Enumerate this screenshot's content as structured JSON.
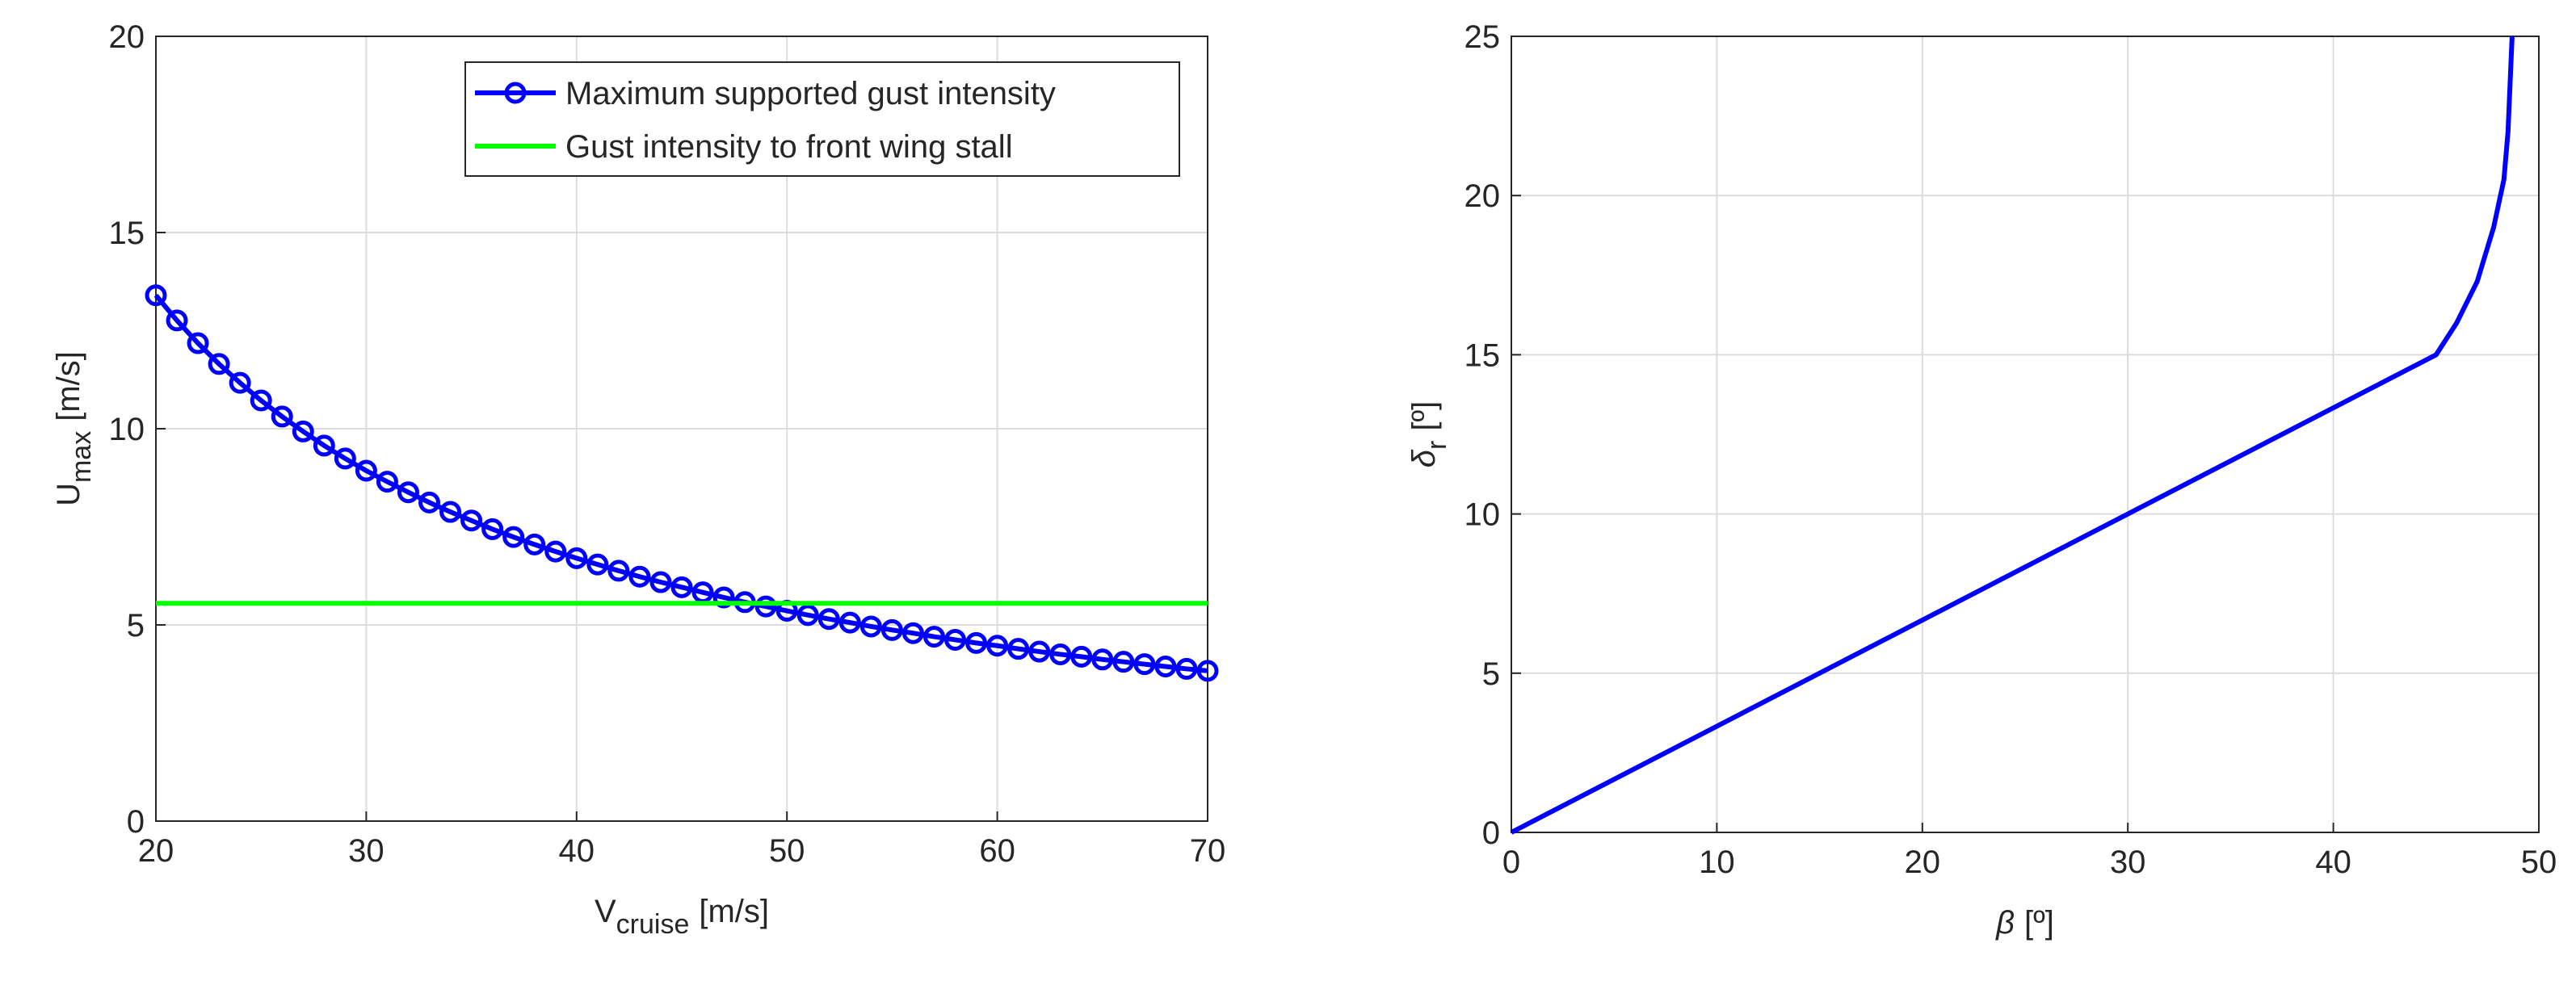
{
  "chart_data": [
    {
      "type": "line",
      "xlabel": {
        "main": "V",
        "sub": "cruise",
        "unit": "[m/s]"
      },
      "ylabel": {
        "main": "U",
        "sub": "max",
        "unit": "[m/s]"
      },
      "xlim": [
        20,
        70
      ],
      "xticks": [
        20,
        30,
        40,
        50,
        60,
        70
      ],
      "ylim": [
        0,
        20
      ],
      "yticks": [
        0,
        5,
        10,
        15,
        20
      ],
      "grid": true,
      "legend": "upper right",
      "series": [
        {
          "name": "Maximum supported gust intensity",
          "color": "#0000ff",
          "marker": "circle",
          "x": [
            20,
            21,
            22,
            23,
            24,
            25,
            26,
            27,
            28,
            29,
            30,
            31,
            32,
            33,
            34,
            35,
            36,
            37,
            38,
            39,
            40,
            41,
            42,
            43,
            44,
            45,
            46,
            47,
            48,
            49,
            50,
            51,
            52,
            53,
            54,
            55,
            56,
            57,
            58,
            59,
            60,
            61,
            62,
            63,
            64,
            65,
            66,
            67,
            68,
            69,
            70
          ],
          "values": [
            13.4,
            12.76,
            12.18,
            11.65,
            11.17,
            10.72,
            10.31,
            9.93,
            9.57,
            9.24,
            8.93,
            8.65,
            8.38,
            8.12,
            7.88,
            7.66,
            7.44,
            7.24,
            7.05,
            6.87,
            6.7,
            6.54,
            6.38,
            6.23,
            6.09,
            5.96,
            5.83,
            5.7,
            5.58,
            5.47,
            5.36,
            5.25,
            5.15,
            5.06,
            4.96,
            4.87,
            4.79,
            4.7,
            4.62,
            4.54,
            4.47,
            4.39,
            4.32,
            4.25,
            4.19,
            4.12,
            4.06,
            4,
            3.94,
            3.88,
            3.83
          ]
        },
        {
          "name": "Gust intensity to front wing stall",
          "color": "#00ff00",
          "x": [
            20,
            70
          ],
          "values": [
            5.55,
            5.55
          ]
        }
      ]
    },
    {
      "type": "line",
      "xlabel": {
        "main": "β",
        "unit": "[º]"
      },
      "ylabel": {
        "main": "δ",
        "sub": "r",
        "unit": "[º]"
      },
      "xlim": [
        0,
        50
      ],
      "xticks": [
        0,
        10,
        20,
        30,
        40,
        50
      ],
      "ylim": [
        0,
        25
      ],
      "yticks": [
        0,
        5,
        10,
        15,
        20,
        25
      ],
      "grid": true,
      "series": [
        {
          "color": "#0000ff",
          "x": [
            0,
            45,
            46,
            47,
            47.8,
            48.3,
            48.5,
            48.6,
            48.7
          ],
          "values": [
            0,
            15,
            16,
            17.3,
            19,
            20.5,
            22,
            23.5,
            25
          ]
        }
      ]
    }
  ]
}
